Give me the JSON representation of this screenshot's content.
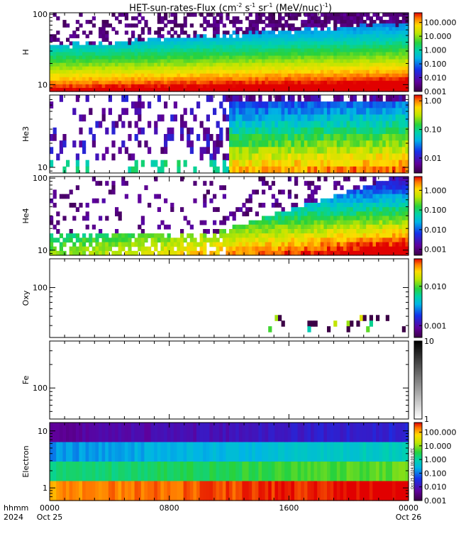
{
  "title": {
    "prefix": "HET-sun-rates-Flux (cm",
    "e1": "-2",
    "s": " s",
    "e2": "-1",
    "sr": " sr",
    "e3": "-1",
    "unit": " (MeV/nuc)",
    "e4": "-1",
    "suffix": ")"
  },
  "side_annotation": "Oct 25 2024 00:00 UTC",
  "time_axis": {
    "row_label_top": "hhmm",
    "row_label_bottom": "2024",
    "ticks": [
      {
        "hhmm": "0000",
        "date": "Oct 25",
        "hour": 0
      },
      {
        "hhmm": "0800",
        "date": "",
        "hour": 8
      },
      {
        "hhmm": "1600",
        "date": "",
        "hour": 16
      },
      {
        "hhmm": "0000",
        "date": "Oct 26",
        "hour": 24
      }
    ]
  },
  "chart_data": [
    {
      "type": "heatmap",
      "ylabel": "H",
      "yscale": "log",
      "ylim": [
        8,
        105
      ],
      "yticks": [
        {
          "value": 10,
          "label": "10"
        },
        {
          "value": 100,
          "label": "100"
        }
      ],
      "colorbar": {
        "scale": "log",
        "range": [
          0.001,
          500
        ],
        "ticks": [
          {
            "value": 0.001,
            "label": "0.001"
          },
          {
            "value": 0.01,
            "label": "0.010"
          },
          {
            "value": 0.1,
            "label": "0.100"
          },
          {
            "value": 1,
            "label": "1.000"
          },
          {
            "value": 10,
            "label": "10.000"
          },
          {
            "value": 100,
            "label": "100.000"
          }
        ]
      }
    },
    {
      "type": "heatmap",
      "ylabel": "He3",
      "yscale": "log",
      "ylim": [
        8.5,
        80
      ],
      "yticks": [
        {
          "value": 10,
          "label": "10"
        }
      ],
      "colorbar": {
        "scale": "log",
        "range": [
          0.003,
          1.6
        ],
        "ticks": [
          {
            "value": 0.01,
            "label": "0.01"
          },
          {
            "value": 0.1,
            "label": "0.10"
          },
          {
            "value": 1,
            "label": "1.00"
          }
        ]
      }
    },
    {
      "type": "heatmap",
      "ylabel": "He4",
      "yscale": "log",
      "ylim": [
        8.5,
        105
      ],
      "yticks": [
        {
          "value": 10,
          "label": "10"
        },
        {
          "value": 100,
          "label": "100"
        }
      ],
      "colorbar": {
        "scale": "log",
        "range": [
          0.0005,
          5
        ],
        "ticks": [
          {
            "value": 0.001,
            "label": "0.001"
          },
          {
            "value": 0.01,
            "label": "0.010"
          },
          {
            "value": 0.1,
            "label": "0.100"
          },
          {
            "value": 1,
            "label": "1.000"
          }
        ]
      }
    },
    {
      "type": "heatmap",
      "ylabel": "Oxy",
      "yscale": "log",
      "ylim": [
        30,
        200
      ],
      "yticks": [
        {
          "value": 100,
          "label": "100"
        }
      ],
      "colorbar": {
        "scale": "log",
        "range": [
          0.0005,
          0.05
        ],
        "ticks": [
          {
            "value": 0.001,
            "label": "0.001"
          },
          {
            "value": 0.01,
            "label": "0.010"
          }
        ]
      }
    },
    {
      "type": "heatmap",
      "ylabel": "Fe",
      "yscale": "log",
      "ylim": [
        40,
        400
      ],
      "yticks": [
        {
          "value": 100,
          "label": "100"
        }
      ],
      "colorbar": {
        "scale": "log",
        "range": [
          1,
          10
        ],
        "colormap": "gray",
        "ticks": [
          {
            "value": 1,
            "label": "1"
          },
          {
            "value": 10,
            "label": "10"
          }
        ]
      }
    },
    {
      "type": "heatmap",
      "ylabel": "Electron",
      "yscale": "log",
      "ylim": [
        0.6,
        14
      ],
      "yticks": [
        {
          "value": 1,
          "label": "1"
        },
        {
          "value": 10,
          "label": "10"
        }
      ],
      "colorbar": {
        "scale": "log",
        "range": [
          0.001,
          500
        ],
        "ticks": [
          {
            "value": 0.001,
            "label": "0.001"
          },
          {
            "value": 0.01,
            "label": "0.010"
          },
          {
            "value": 0.1,
            "label": "0.100"
          },
          {
            "value": 1,
            "label": "1.000"
          },
          {
            "value": 10,
            "label": "10.000"
          },
          {
            "value": 100,
            "label": "100.000"
          }
        ]
      }
    }
  ]
}
